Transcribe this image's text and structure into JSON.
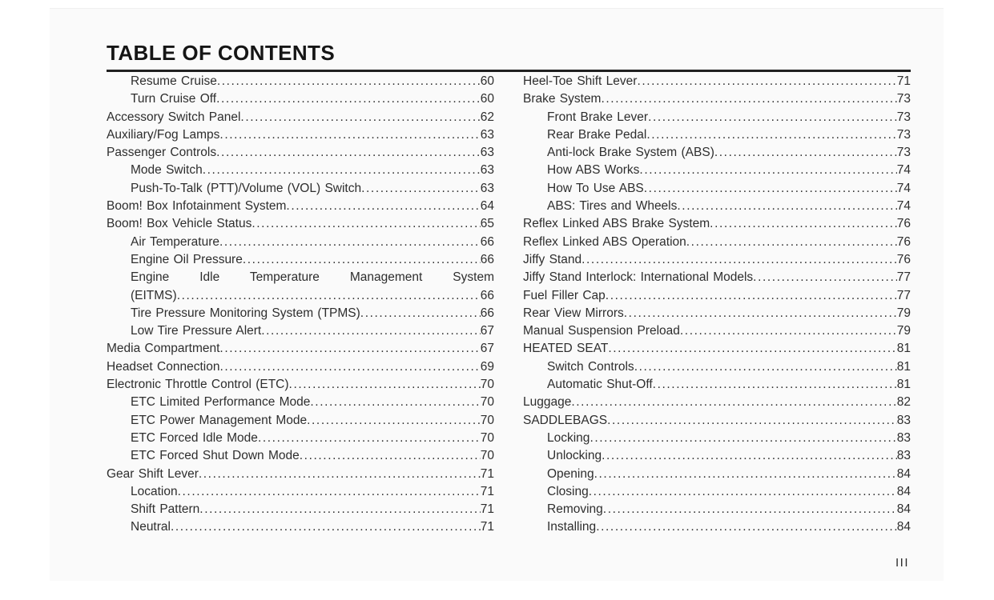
{
  "page": {
    "title": "TABLE OF CONTENTS",
    "page_number": "III"
  },
  "toc": {
    "left": [
      {
        "label": "Resume Cruise",
        "page": "60",
        "indent": 1
      },
      {
        "label": "Turn Cruise Off",
        "page": "60",
        "indent": 1
      },
      {
        "label": "Accessory Switch Panel",
        "page": "62",
        "indent": 0
      },
      {
        "label": "Auxiliary/Fog Lamps",
        "page": "63",
        "indent": 0
      },
      {
        "label": "Passenger Controls",
        "page": "63",
        "indent": 0
      },
      {
        "label": "Mode Switch",
        "page": "63",
        "indent": 1
      },
      {
        "label": "Push-To-Talk (PTT)/Volume (VOL) Switch",
        "page": "63",
        "indent": 1
      },
      {
        "label": "Boom! Box Infotainment System",
        "page": "64",
        "indent": 0
      },
      {
        "label": "Boom! Box Vehicle Status",
        "page": "65",
        "indent": 0
      },
      {
        "label": "Air Temperature",
        "page": "66",
        "indent": 1
      },
      {
        "label": "Engine Oil Pressure",
        "page": "66",
        "indent": 1
      },
      {
        "label": "Engine Idle Temperature Management System",
        "label2": "(EITMS)",
        "page": "66",
        "indent": 1,
        "wrap": true
      },
      {
        "label": "Tire Pressure Monitoring System (TPMS)",
        "page": "66",
        "indent": 1
      },
      {
        "label": "Low Tire Pressure Alert",
        "page": "67",
        "indent": 1
      },
      {
        "label": "Media Compartment",
        "page": "67",
        "indent": 0
      },
      {
        "label": "Headset Connection",
        "page": "69",
        "indent": 0
      },
      {
        "label": "Electronic Throttle Control (ETC)",
        "page": "70",
        "indent": 0
      },
      {
        "label": "ETC Limited Performance Mode",
        "page": "70",
        "indent": 1
      },
      {
        "label": "ETC Power Management Mode",
        "page": "70",
        "indent": 1
      },
      {
        "label": "ETC Forced Idle Mode",
        "page": "70",
        "indent": 1
      },
      {
        "label": "ETC Forced Shut Down Mode",
        "page": "70",
        "indent": 1
      },
      {
        "label": "Gear Shift Lever",
        "page": "71",
        "indent": 0
      },
      {
        "label": "Location",
        "page": "71",
        "indent": 1
      },
      {
        "label": "Shift Pattern",
        "page": "71",
        "indent": 1
      },
      {
        "label": "Neutral",
        "page": "71",
        "indent": 1
      }
    ],
    "right": [
      {
        "label": "Heel-Toe Shift Lever",
        "page": "71",
        "indent": 0
      },
      {
        "label": "Brake System",
        "page": "73",
        "indent": 0
      },
      {
        "label": "Front Brake Lever",
        "page": "73",
        "indent": 1
      },
      {
        "label": "Rear Brake Pedal",
        "page": "73",
        "indent": 1
      },
      {
        "label": "Anti-lock Brake System (ABS)",
        "page": "73",
        "indent": 1
      },
      {
        "label": "How ABS Works",
        "page": "74",
        "indent": 1
      },
      {
        "label": "How To Use ABS",
        "page": "74",
        "indent": 1
      },
      {
        "label": "ABS: Tires and Wheels",
        "page": "74",
        "indent": 1
      },
      {
        "label": "Reflex Linked ABS Brake System",
        "page": "76",
        "indent": 0
      },
      {
        "label": "Reflex Linked ABS Operation",
        "page": "76",
        "indent": 0
      },
      {
        "label": "Jiffy Stand",
        "page": "76",
        "indent": 0
      },
      {
        "label": "Jiffy Stand Interlock: International Models",
        "page": "77",
        "indent": 0
      },
      {
        "label": "Fuel Filler Cap",
        "page": "77",
        "indent": 0
      },
      {
        "label": "Rear View Mirrors",
        "page": "79",
        "indent": 0
      },
      {
        "label": "Manual Suspension Preload",
        "page": "79",
        "indent": 0
      },
      {
        "label": "HEATED SEAT",
        "page": "81",
        "indent": 0
      },
      {
        "label": "Switch Controls",
        "page": "81",
        "indent": 1
      },
      {
        "label": "Automatic Shut-Off",
        "page": "81",
        "indent": 1
      },
      {
        "label": "Luggage",
        "page": "82",
        "indent": 0
      },
      {
        "label": "SADDLEBAGS",
        "page": "83",
        "indent": 0
      },
      {
        "label": "Locking",
        "page": "83",
        "indent": 1
      },
      {
        "label": "Unlocking",
        "page": "83",
        "indent": 1
      },
      {
        "label": "Opening",
        "page": "84",
        "indent": 1
      },
      {
        "label": "Closing",
        "page": "84",
        "indent": 1
      },
      {
        "label": "Removing",
        "page": "84",
        "indent": 1
      },
      {
        "label": "Installing",
        "page": "84",
        "indent": 1
      }
    ]
  }
}
